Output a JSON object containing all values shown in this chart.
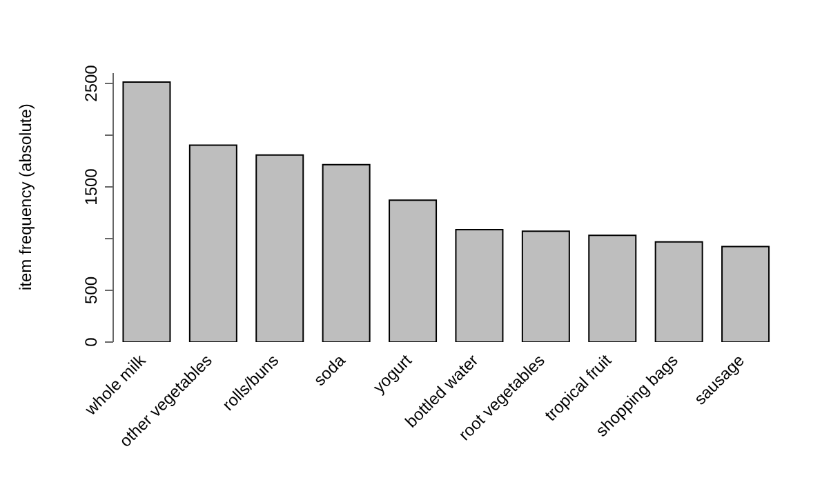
{
  "chart_data": {
    "type": "bar",
    "ylabel": "item frequency (absolute)",
    "categories": [
      "whole milk",
      "other vegetables",
      "rolls/buns",
      "soda",
      "yogurt",
      "bottled water",
      "root vegetables",
      "tropical fruit",
      "shopping bags",
      "sausage"
    ],
    "values": [
      2513,
      1903,
      1809,
      1715,
      1372,
      1087,
      1072,
      1032,
      969,
      924
    ],
    "color": "#bebebe",
    "ylim": [
      0,
      2600
    ],
    "yticks": [
      0,
      500,
      {
        "value": 1000,
        "label": null
      },
      1500,
      {
        "value": 2000,
        "label": null
      },
      2500
    ],
    "grid": false
  }
}
